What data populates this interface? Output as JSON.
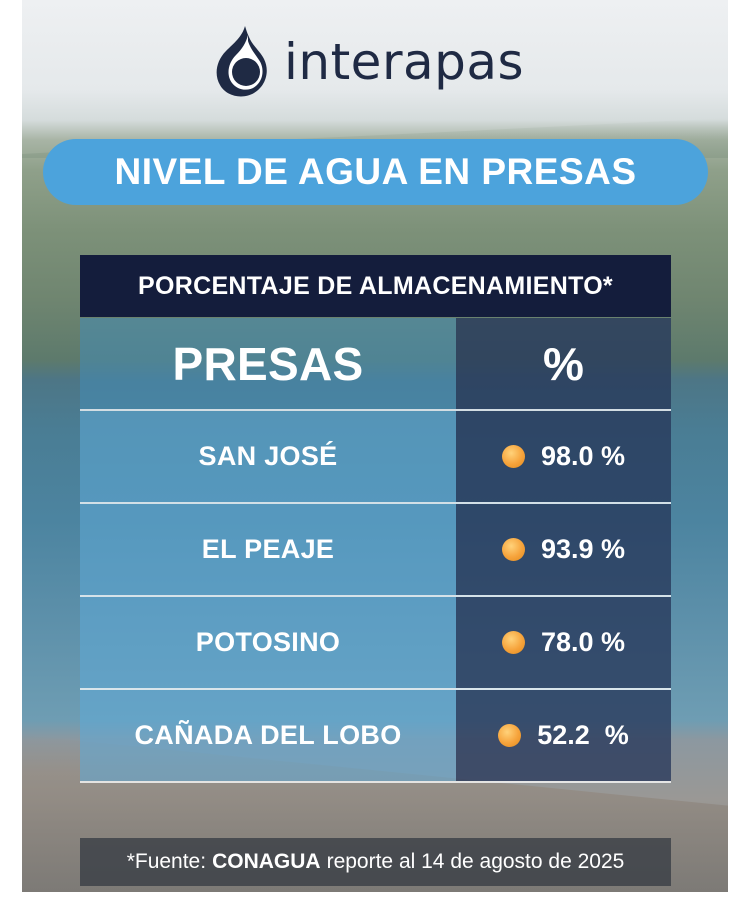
{
  "brand": {
    "name": "interapas",
    "logo_icon": "water-drop-icon",
    "color": "#1f2a44"
  },
  "title": "NIVEL DE AGUA EN PRESAS",
  "table": {
    "caption": "PORCENTAJE DE ALMACENAMIENTO*",
    "headers": {
      "name": "PRESAS",
      "value": "%"
    },
    "rows": [
      {
        "name": "SAN JOSÉ",
        "value": "98.0 %"
      },
      {
        "name": "EL PEAJE",
        "value": "93.9 %"
      },
      {
        "name": "POTOSINO",
        "value": "78.0 %"
      },
      {
        "name": "CAÑADA DEL LOBO",
        "value": "52.2  %"
      }
    ],
    "status_dot_color": "#f6a33b"
  },
  "footer": {
    "prefix": "*Fuente:",
    "source": "CONAGUA",
    "suffix": "reporte al 14 de agosto de 2025"
  },
  "colors": {
    "title_pill": "#4ca3dc",
    "caption_bar": "#141d3c"
  }
}
